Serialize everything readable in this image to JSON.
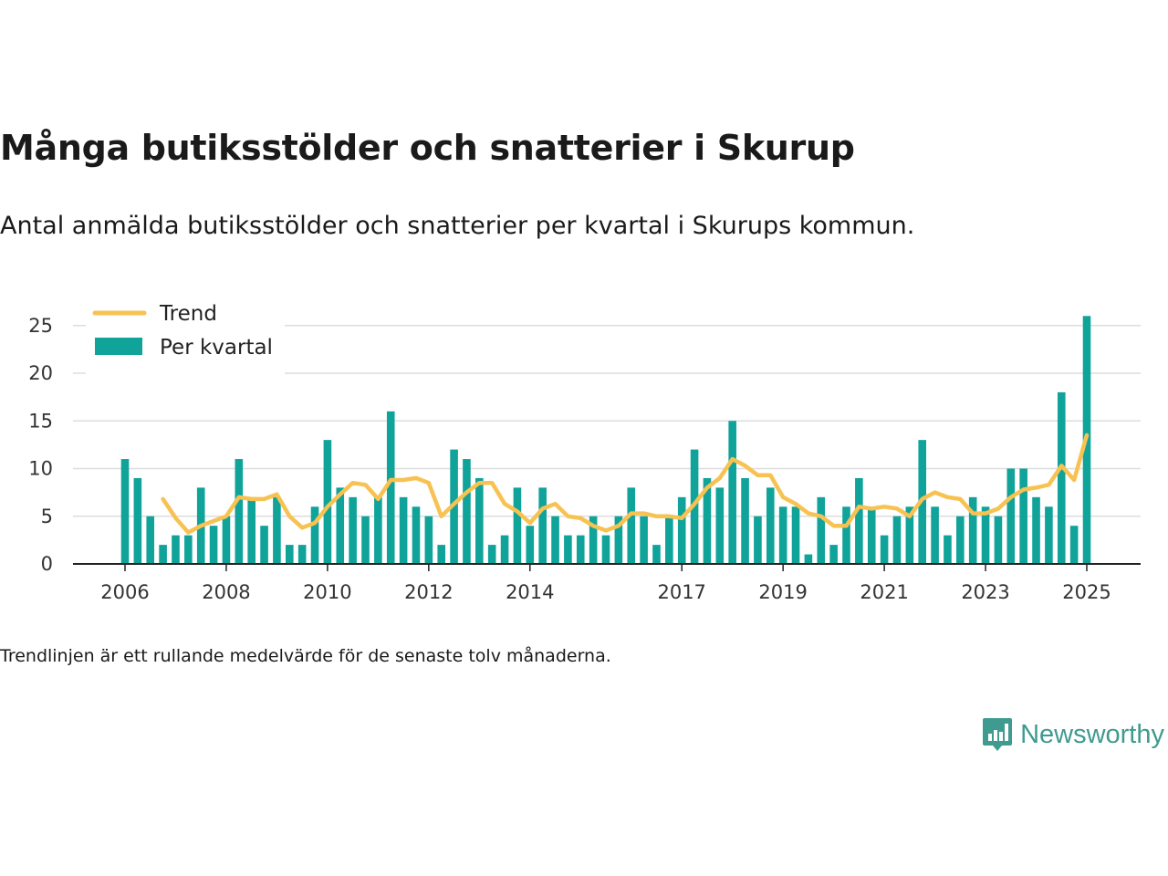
{
  "title": "Många butiksstölder och snatterier i Skurup",
  "subtitle": "Antal anmälda butiksstölder och snatterier per kvartal i Skurups kommun.",
  "note": "Trendlinjen är ett rullande medelvärde för de senaste tolv månaderna.",
  "brand": "Newsworthy",
  "colors": {
    "bar": "#0fa39a",
    "trend": "#f7c251",
    "grid": "#dddddd",
    "axis": "#222222",
    "brand": "#3f9a8f"
  },
  "chart_data": {
    "type": "bar",
    "legend": {
      "placement": "top-left",
      "entries": [
        "Trend",
        "Per kvartal"
      ]
    },
    "ylim": [
      0,
      27
    ],
    "yticks": [
      0,
      5,
      10,
      15,
      20,
      25
    ],
    "x_tick_labels": [
      "2006",
      "2008",
      "2010",
      "2012",
      "2014",
      "2017",
      "2019",
      "2021",
      "2023",
      "2025"
    ],
    "x_tick_positions": [
      "2006-Q1",
      "2008-Q1",
      "2010-Q1",
      "2012-Q1",
      "2014-Q1",
      "2017-Q1",
      "2019-Q1",
      "2021-Q1",
      "2023-Q1",
      "2025-Q1"
    ],
    "categories": [
      "2006-Q1",
      "2006-Q2",
      "2006-Q3",
      "2006-Q4",
      "2007-Q1",
      "2007-Q2",
      "2007-Q3",
      "2007-Q4",
      "2008-Q1",
      "2008-Q2",
      "2008-Q3",
      "2008-Q4",
      "2009-Q1",
      "2009-Q2",
      "2009-Q3",
      "2009-Q4",
      "2010-Q1",
      "2010-Q2",
      "2010-Q3",
      "2010-Q4",
      "2011-Q1",
      "2011-Q2",
      "2011-Q3",
      "2011-Q4",
      "2012-Q1",
      "2012-Q2",
      "2012-Q3",
      "2012-Q4",
      "2013-Q1",
      "2013-Q2",
      "2013-Q3",
      "2013-Q4",
      "2014-Q1",
      "2014-Q2",
      "2014-Q3",
      "2014-Q4",
      "2015-Q1",
      "2015-Q2",
      "2015-Q3",
      "2015-Q4",
      "2016-Q1",
      "2016-Q2",
      "2016-Q3",
      "2016-Q4",
      "2017-Q1",
      "2017-Q2",
      "2017-Q3",
      "2017-Q4",
      "2018-Q1",
      "2018-Q2",
      "2018-Q3",
      "2018-Q4",
      "2019-Q1",
      "2019-Q2",
      "2019-Q3",
      "2019-Q4",
      "2020-Q1",
      "2020-Q2",
      "2020-Q3",
      "2020-Q4",
      "2021-Q1",
      "2021-Q2",
      "2021-Q3",
      "2021-Q4",
      "2022-Q1",
      "2022-Q2",
      "2022-Q3",
      "2022-Q4",
      "2023-Q1",
      "2023-Q2",
      "2023-Q3",
      "2023-Q4",
      "2024-Q1",
      "2024-Q2",
      "2024-Q3",
      "2024-Q4",
      "2025-Q1"
    ],
    "series": [
      {
        "name": "Per kvartal",
        "type": "bar",
        "values": [
          11,
          9,
          5,
          2,
          3,
          3,
          8,
          4,
          5,
          11,
          7,
          4,
          7,
          2,
          2,
          6,
          13,
          8,
          7,
          5,
          7,
          16,
          7,
          6,
          5,
          2,
          12,
          11,
          9,
          2,
          3,
          8,
          4,
          8,
          5,
          3,
          3,
          5,
          3,
          5,
          8,
          5,
          2,
          5,
          7,
          12,
          9,
          8,
          15,
          9,
          5,
          8,
          6,
          6,
          1,
          7,
          2,
          6,
          9,
          6,
          3,
          5,
          6,
          13,
          6,
          3,
          5,
          7,
          6,
          5,
          10,
          10,
          7,
          6,
          18,
          4,
          26
        ]
      },
      {
        "name": "Trend",
        "type": "line",
        "values": [
          null,
          null,
          null,
          6.8,
          4.8,
          3.3,
          4.0,
          4.5,
          5.0,
          7.0,
          6.8,
          6.8,
          7.3,
          5.0,
          3.8,
          4.3,
          6.0,
          7.3,
          8.5,
          8.3,
          6.8,
          8.8,
          8.8,
          9.0,
          8.5,
          5.0,
          6.3,
          7.5,
          8.5,
          8.5,
          6.3,
          5.5,
          4.3,
          5.8,
          6.3,
          5.0,
          4.8,
          4.0,
          3.5,
          4.0,
          5.3,
          5.3,
          5.0,
          5.0,
          4.8,
          6.3,
          8.0,
          9.0,
          11.0,
          10.3,
          9.3,
          9.3,
          7.0,
          6.3,
          5.3,
          5.0,
          4.0,
          4.0,
          6.0,
          5.8,
          6.0,
          5.8,
          5.0,
          6.8,
          7.5,
          7.0,
          6.8,
          5.3,
          5.3,
          5.8,
          7.0,
          7.8,
          8.0,
          8.3,
          10.3,
          8.8,
          13.5
        ]
      }
    ]
  }
}
